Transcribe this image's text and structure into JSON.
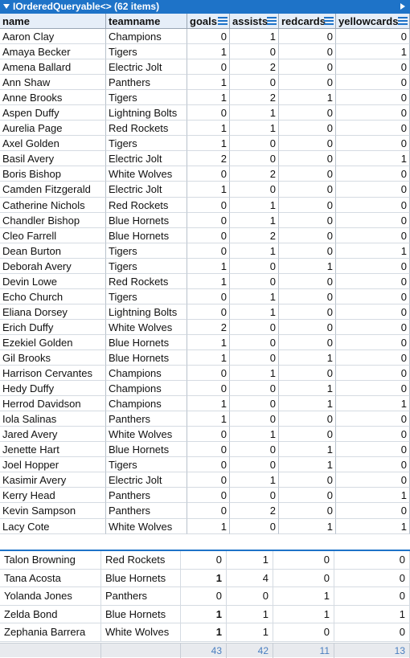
{
  "title": "IOrderedQueryable<> (62 items)",
  "columns": [
    {
      "key": "name",
      "label": "name",
      "menu": false
    },
    {
      "key": "teamname",
      "label": "teamname",
      "menu": false
    },
    {
      "key": "goals",
      "label": "goals",
      "menu": true
    },
    {
      "key": "assists",
      "label": "assists",
      "menu": true
    },
    {
      "key": "redcards",
      "label": "redcards",
      "menu": true
    },
    {
      "key": "yellowcards",
      "label": "yellowcards",
      "menu": true
    }
  ],
  "rows": [
    [
      "Aaron Clay",
      "Champions",
      "0",
      "1",
      "0",
      "0"
    ],
    [
      "Amaya Becker",
      "Tigers",
      "1",
      "0",
      "0",
      "1"
    ],
    [
      "Amena Ballard",
      "Electric Jolt",
      "0",
      "2",
      "0",
      "0"
    ],
    [
      "Ann Shaw",
      "Panthers",
      "1",
      "0",
      "0",
      "0"
    ],
    [
      "Anne Brooks",
      "Tigers",
      "1",
      "2",
      "1",
      "0"
    ],
    [
      "Aspen Duffy",
      "Lightning Bolts",
      "0",
      "1",
      "0",
      "0"
    ],
    [
      "Aurelia Page",
      "Red Rockets",
      "1",
      "1",
      "0",
      "0"
    ],
    [
      "Axel Golden",
      "Tigers",
      "1",
      "0",
      "0",
      "0"
    ],
    [
      "Basil Avery",
      "Electric Jolt",
      "2",
      "0",
      "0",
      "1"
    ],
    [
      "Boris Bishop",
      "White Wolves",
      "0",
      "2",
      "0",
      "0"
    ],
    [
      "Camden Fitzgerald",
      "Electric Jolt",
      "1",
      "0",
      "0",
      "0"
    ],
    [
      "Catherine Nichols",
      "Red Rockets",
      "0",
      "1",
      "0",
      "0"
    ],
    [
      "Chandler Bishop",
      "Blue Hornets",
      "0",
      "1",
      "0",
      "0"
    ],
    [
      "Cleo Farrell",
      "Blue Hornets",
      "0",
      "2",
      "0",
      "0"
    ],
    [
      "Dean Burton",
      "Tigers",
      "0",
      "1",
      "0",
      "1"
    ],
    [
      "Deborah Avery",
      "Tigers",
      "1",
      "0",
      "1",
      "0"
    ],
    [
      "Devin Lowe",
      "Red Rockets",
      "1",
      "0",
      "0",
      "0"
    ],
    [
      "Echo Church",
      "Tigers",
      "0",
      "1",
      "0",
      "0"
    ],
    [
      "Eliana Dorsey",
      "Lightning Bolts",
      "0",
      "1",
      "0",
      "0"
    ],
    [
      "Erich Duffy",
      "White Wolves",
      "2",
      "0",
      "0",
      "0"
    ],
    [
      "Ezekiel Golden",
      "Blue Hornets",
      "1",
      "0",
      "0",
      "0"
    ],
    [
      "Gil Brooks",
      "Blue Hornets",
      "1",
      "0",
      "1",
      "0"
    ],
    [
      "Harrison Cervantes",
      "Champions",
      "0",
      "1",
      "0",
      "0"
    ],
    [
      "Hedy Duffy",
      "Champions",
      "0",
      "0",
      "1",
      "0"
    ],
    [
      "Herrod Davidson",
      "Champions",
      "1",
      "0",
      "1",
      "1"
    ],
    [
      "Iola Salinas",
      "Panthers",
      "1",
      "0",
      "0",
      "0"
    ],
    [
      "Jared Avery",
      "White Wolves",
      "0",
      "1",
      "0",
      "0"
    ],
    [
      "Jenette Hart",
      "Blue Hornets",
      "0",
      "0",
      "1",
      "0"
    ],
    [
      "Joel Hopper",
      "Tigers",
      "0",
      "0",
      "1",
      "0"
    ],
    [
      "Kasimir Avery",
      "Electric Jolt",
      "0",
      "1",
      "0",
      "0"
    ],
    [
      "Kerry Head",
      "Panthers",
      "0",
      "0",
      "0",
      "1"
    ],
    [
      "Kevin Sampson",
      "Panthers",
      "0",
      "2",
      "0",
      "0"
    ],
    [
      "Lacy Cote",
      "White Wolves",
      "1",
      "0",
      "1",
      "1"
    ]
  ],
  "bottom_rows": [
    [
      "Talon Browning",
      "Red Rockets",
      "0",
      "1",
      "0",
      "0"
    ],
    [
      "Tana Acosta",
      "Blue Hornets",
      "1",
      "4",
      "0",
      "0"
    ],
    [
      "Yolanda Jones",
      "Panthers",
      "0",
      "0",
      "1",
      "0"
    ],
    [
      "Zelda Bond",
      "Blue Hornets",
      "1",
      "1",
      "1",
      "1"
    ],
    [
      "Zephania Barrera",
      "White Wolves",
      "1",
      "1",
      "0",
      "0"
    ]
  ],
  "bottom_bold": [
    [
      false,
      false,
      false,
      false,
      false,
      false
    ],
    [
      false,
      false,
      true,
      false,
      false,
      false
    ],
    [
      false,
      false,
      false,
      false,
      false,
      false
    ],
    [
      false,
      false,
      true,
      false,
      false,
      false
    ],
    [
      false,
      false,
      true,
      false,
      false,
      false
    ]
  ],
  "totals": [
    "",
    "",
    "43",
    "42",
    "11",
    "13"
  ]
}
